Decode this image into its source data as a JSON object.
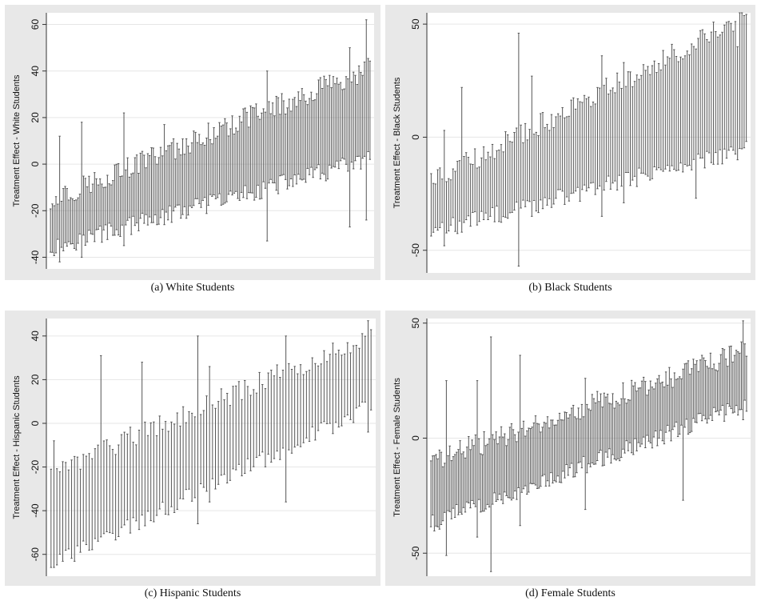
{
  "figure": {
    "captions": [
      "(a) White Students",
      "(b) Black Students",
      "(c) Hispanic Students",
      "(d) Female Students"
    ]
  },
  "colors": {
    "outer_bg": "#e8e8e8",
    "plot_bg": "#ffffff",
    "bar": "#555555",
    "grid": "#e6e6e6",
    "axis": "#333333"
  },
  "chart_data": [
    {
      "type": "errorbar",
      "caption": "(a) White Students",
      "ylabel": "Treatment Effect - White Students",
      "ylim": [
        -45,
        65
      ],
      "yticks": [
        -40,
        -20,
        0,
        20,
        40,
        60
      ],
      "n_intervals": 175,
      "series": [
        {
          "lower_start": -36,
          "lower_end": 2,
          "upper_start": -15,
          "upper_end": 41,
          "outliers": [
            {
              "index": 5,
              "upper": 12,
              "lower": -42
            },
            {
              "index": 17,
              "upper": 18,
              "lower": -40
            },
            {
              "index": 40,
              "upper": 22,
              "lower": -35
            },
            {
              "index": 62,
              "upper": 17,
              "lower": -26
            },
            {
              "index": 118,
              "upper": 40,
              "lower": -33
            },
            {
              "index": 163,
              "upper": 50,
              "lower": -27
            },
            {
              "index": 172,
              "upper": 62,
              "lower": -24
            }
          ]
        }
      ]
    },
    {
      "type": "errorbar",
      "caption": "(b) Black Students",
      "ylabel": "Treatment Effect - Black Students",
      "ylim": [
        -60,
        55
      ],
      "yticks": [
        -50,
        0,
        50
      ],
      "n_intervals": 145,
      "series": [
        {
          "lower_start": -42,
          "lower_end": -5,
          "upper_start": -20,
          "upper_end": 54,
          "outliers": [
            {
              "index": 6,
              "upper": 3,
              "lower": -48
            },
            {
              "index": 14,
              "upper": 22,
              "lower": -42
            },
            {
              "index": 40,
              "upper": 46,
              "lower": -57
            },
            {
              "index": 46,
              "upper": 27,
              "lower": -35
            },
            {
              "index": 78,
              "upper": 36,
              "lower": -35
            },
            {
              "index": 88,
              "upper": 33,
              "lower": -29
            },
            {
              "index": 121,
              "upper": 39,
              "lower": -27
            },
            {
              "index": 140,
              "upper": 40,
              "lower": -10
            }
          ]
        }
      ]
    },
    {
      "type": "errorbar",
      "caption": "(c) Hispanic Students",
      "ylabel": "Treatment Effect - Hispanic Students",
      "ylim": [
        -70,
        48
      ],
      "yticks": [
        -60,
        -40,
        -20,
        0,
        20,
        40
      ],
      "n_intervals": 110,
      "series": [
        {
          "lower_start": -65,
          "lower_end": 8,
          "upper_start": -22,
          "upper_end": 40,
          "outliers": [
            {
              "index": 0,
              "upper": -21,
              "lower": -66
            },
            {
              "index": 1,
              "upper": -8,
              "lower": -66
            },
            {
              "index": 17,
              "upper": 31,
              "lower": -52
            },
            {
              "index": 31,
              "upper": 28,
              "lower": -42
            },
            {
              "index": 50,
              "upper": 40,
              "lower": -46
            },
            {
              "index": 54,
              "upper": 26,
              "lower": -36
            },
            {
              "index": 80,
              "upper": 40,
              "lower": -36
            },
            {
              "index": 108,
              "upper": 47,
              "lower": -4
            }
          ]
        }
      ]
    },
    {
      "type": "errorbar",
      "caption": "(d) Female Students",
      "ylabel": "Treatment Effect - Female Students",
      "ylim": [
        -60,
        52
      ],
      "yticks": [
        -50,
        0,
        50
      ],
      "n_intervals": 185,
      "series": [
        {
          "lower_start": -37,
          "lower_end": 15,
          "upper_start": -10,
          "upper_end": 38,
          "outliers": [
            {
              "index": 9,
              "upper": 25,
              "lower": -51
            },
            {
              "index": 27,
              "upper": 25,
              "lower": -43
            },
            {
              "index": 35,
              "upper": 44,
              "lower": -58
            },
            {
              "index": 52,
              "upper": 36,
              "lower": -38
            },
            {
              "index": 90,
              "upper": 26,
              "lower": -31
            },
            {
              "index": 147,
              "upper": 30,
              "lower": -27
            },
            {
              "index": 182,
              "upper": 51,
              "lower": 8
            }
          ]
        }
      ]
    }
  ]
}
